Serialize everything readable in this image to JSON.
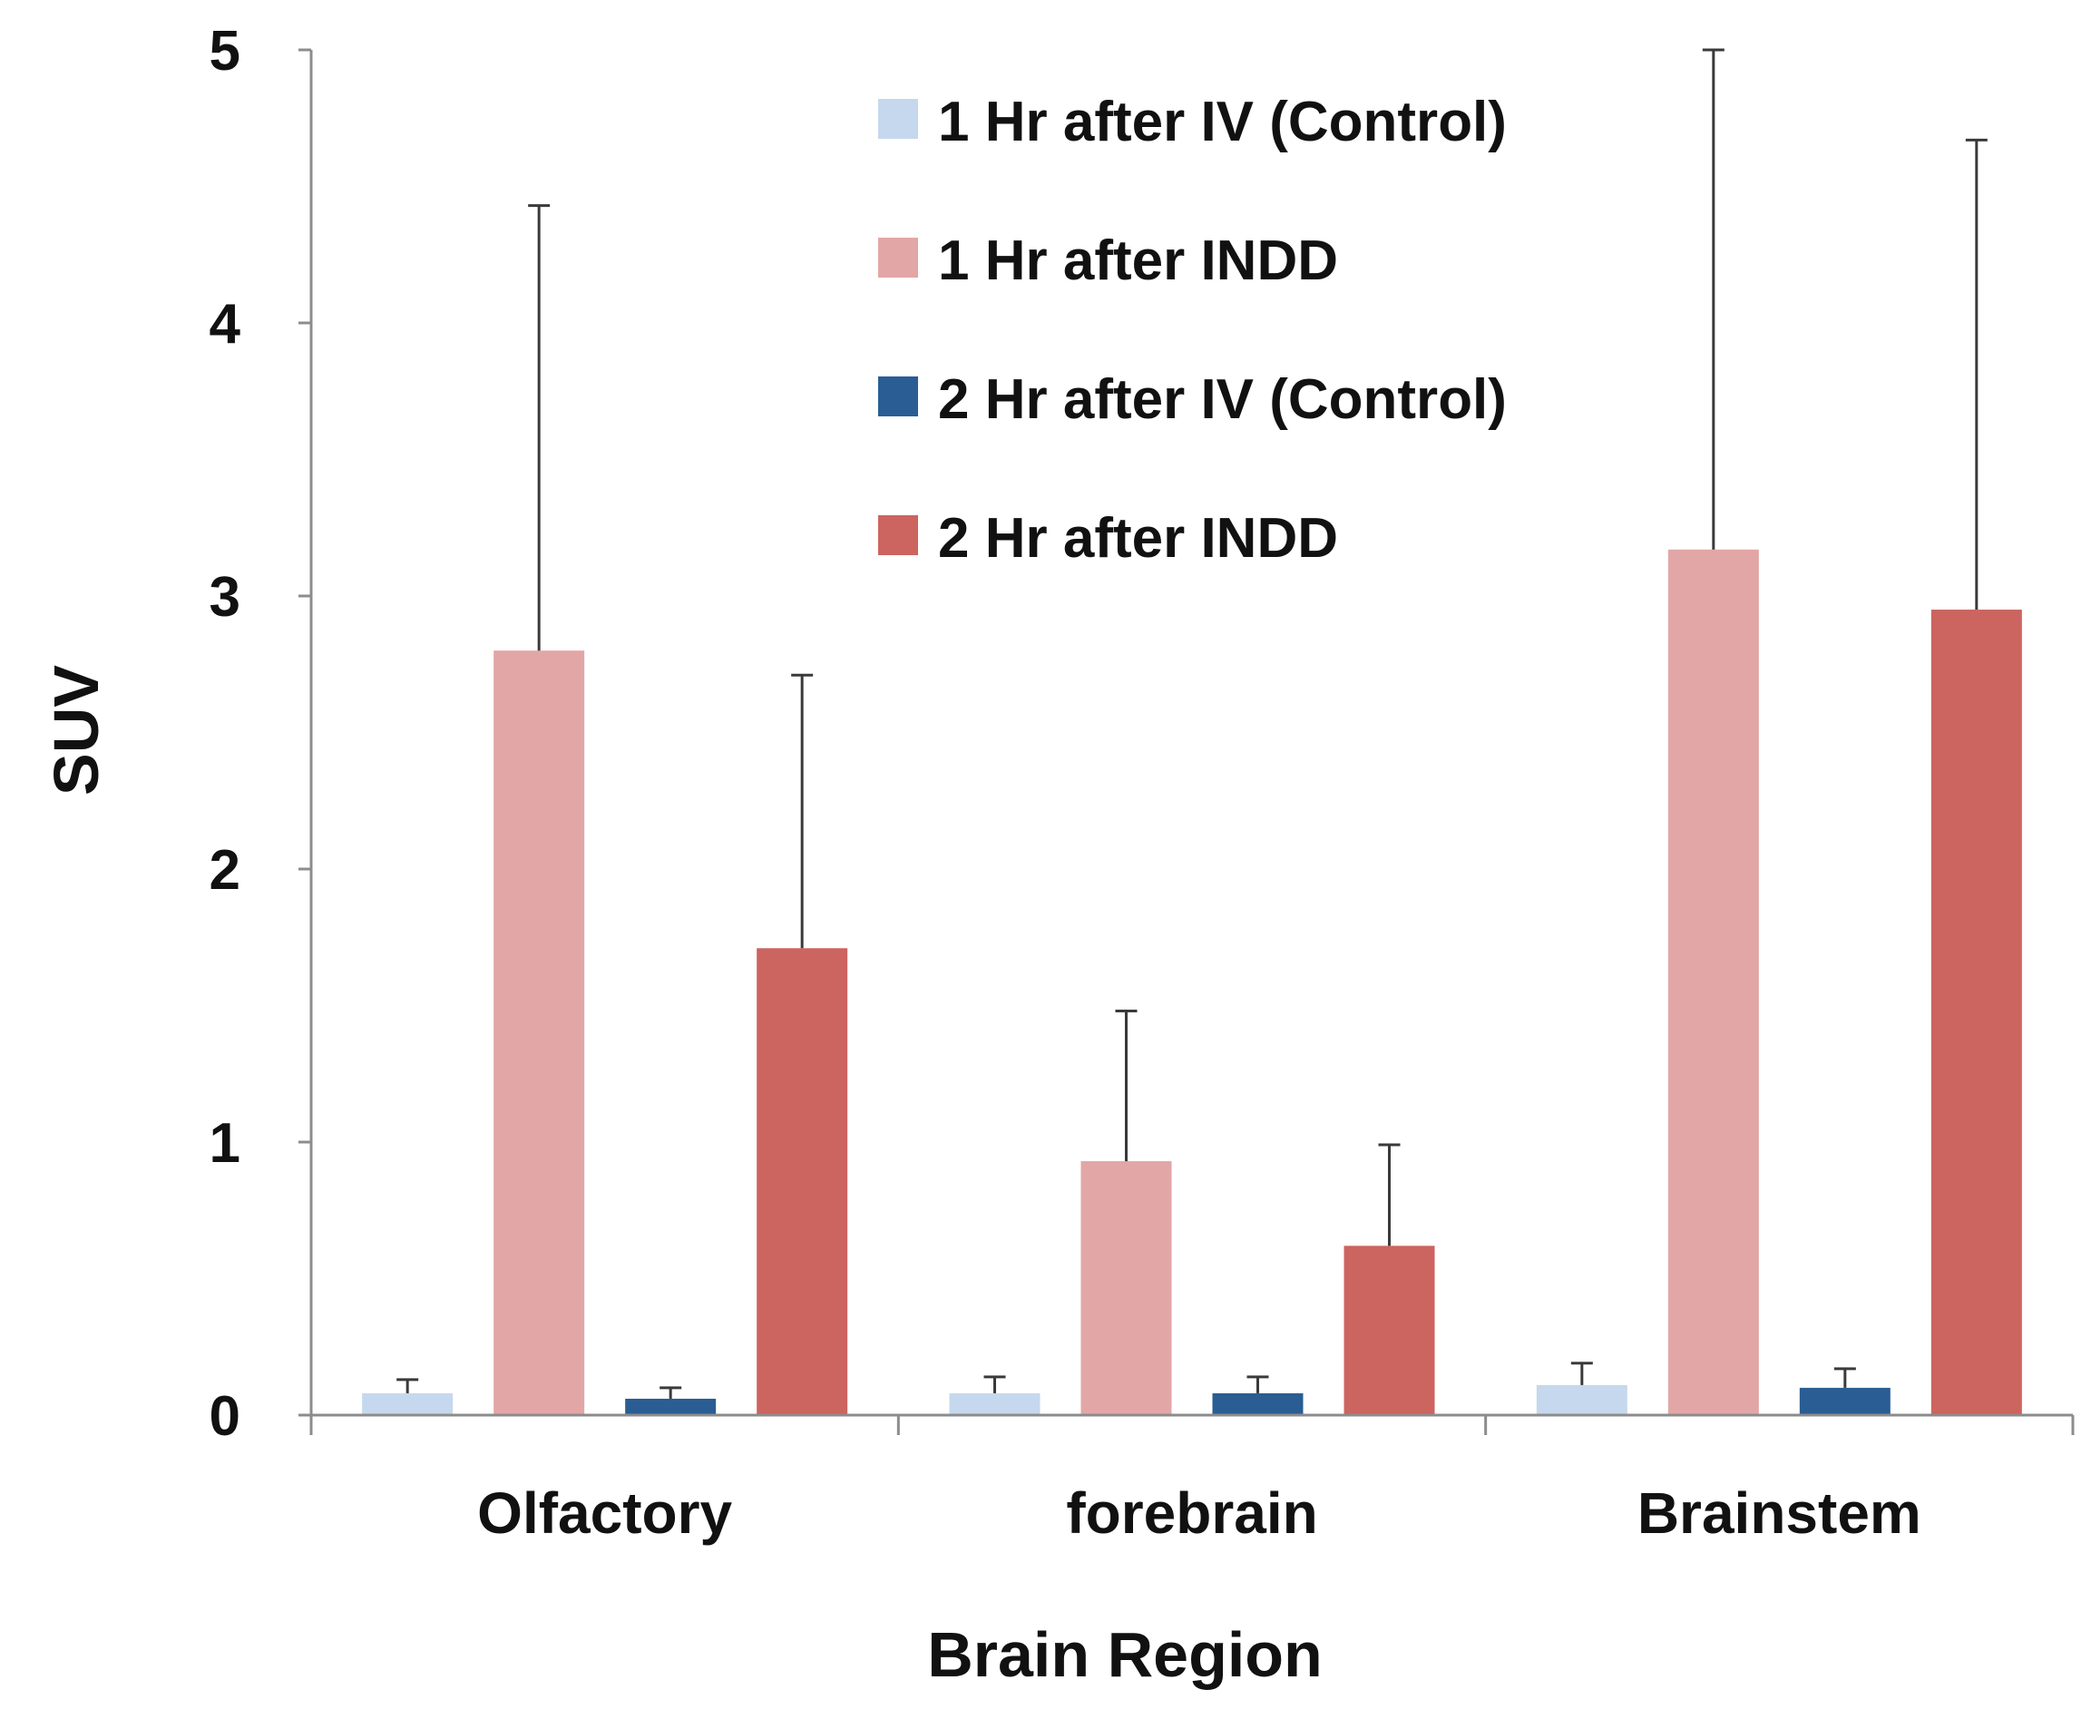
{
  "chart_data": {
    "type": "bar",
    "title": "",
    "xlabel": "Brain Region",
    "ylabel": "SUV",
    "ylim": [
      0,
      5
    ],
    "yticks": [
      0,
      1,
      2,
      3,
      4,
      5
    ],
    "grid": false,
    "legend_position": "top-right",
    "categories": [
      "Olfactory",
      "forebrain",
      "Brainstem"
    ],
    "series": [
      {
        "name": "1 Hr after IV (Control)",
        "color": "#c5d8ed",
        "values": [
          0.08,
          0.08,
          0.11
        ],
        "errors": [
          0.05,
          0.06,
          0.08
        ]
      },
      {
        "name": "1 Hr after INDD",
        "color": "#e2a6a6",
        "values": [
          2.8,
          0.93,
          3.17
        ],
        "errors": [
          1.63,
          0.55,
          1.83
        ]
      },
      {
        "name": "2 Hr after IV (Control)",
        "color": "#2a5d93",
        "values": [
          0.06,
          0.08,
          0.1
        ],
        "errors": [
          0.04,
          0.06,
          0.07
        ]
      },
      {
        "name": "2 Hr after INDD",
        "color": "#cc6460",
        "values": [
          1.71,
          0.62,
          2.95
        ],
        "errors": [
          1.0,
          0.37,
          1.72
        ]
      }
    ]
  }
}
